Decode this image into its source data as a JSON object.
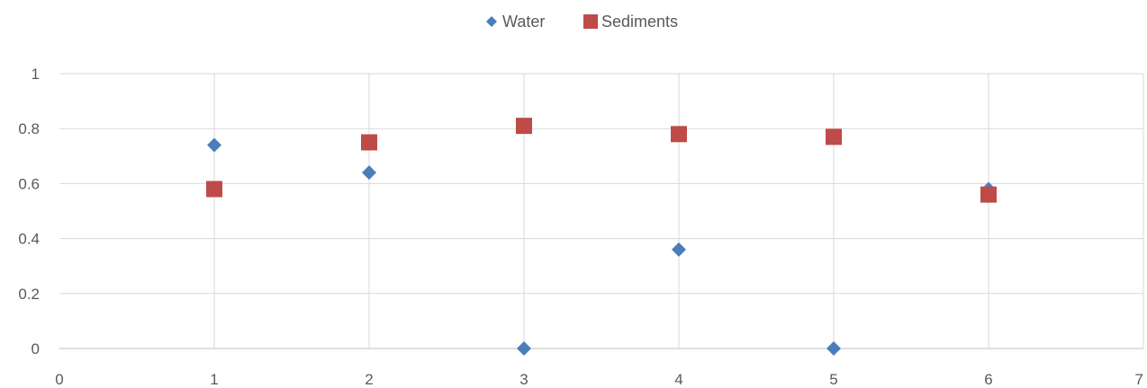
{
  "chart_data": {
    "type": "scatter",
    "title": "",
    "xlabel": "",
    "ylabel": "",
    "xlim": [
      0,
      7
    ],
    "ylim": [
      0,
      1
    ],
    "x_ticks": [
      "0",
      "1",
      "2",
      "3",
      "4",
      "5",
      "6",
      "7"
    ],
    "y_ticks": [
      "0",
      "0.2",
      "0.4",
      "0.6",
      "0.8",
      "1"
    ],
    "grid": true,
    "legend_position": "top",
    "series": [
      {
        "name": "Water",
        "marker": "diamond",
        "color": "#4a7ebb",
        "points": [
          {
            "x": 1,
            "y": 0.74
          },
          {
            "x": 2,
            "y": 0.64
          },
          {
            "x": 3,
            "y": 0.0
          },
          {
            "x": 4,
            "y": 0.36
          },
          {
            "x": 5,
            "y": 0.0
          },
          {
            "x": 6,
            "y": 0.58
          }
        ]
      },
      {
        "name": "Sediments",
        "marker": "square",
        "color": "#be4b48",
        "points": [
          {
            "x": 1,
            "y": 0.58
          },
          {
            "x": 2,
            "y": 0.75
          },
          {
            "x": 3,
            "y": 0.81
          },
          {
            "x": 4,
            "y": 0.78
          },
          {
            "x": 5,
            "y": 0.77
          },
          {
            "x": 6,
            "y": 0.56
          }
        ]
      }
    ]
  }
}
